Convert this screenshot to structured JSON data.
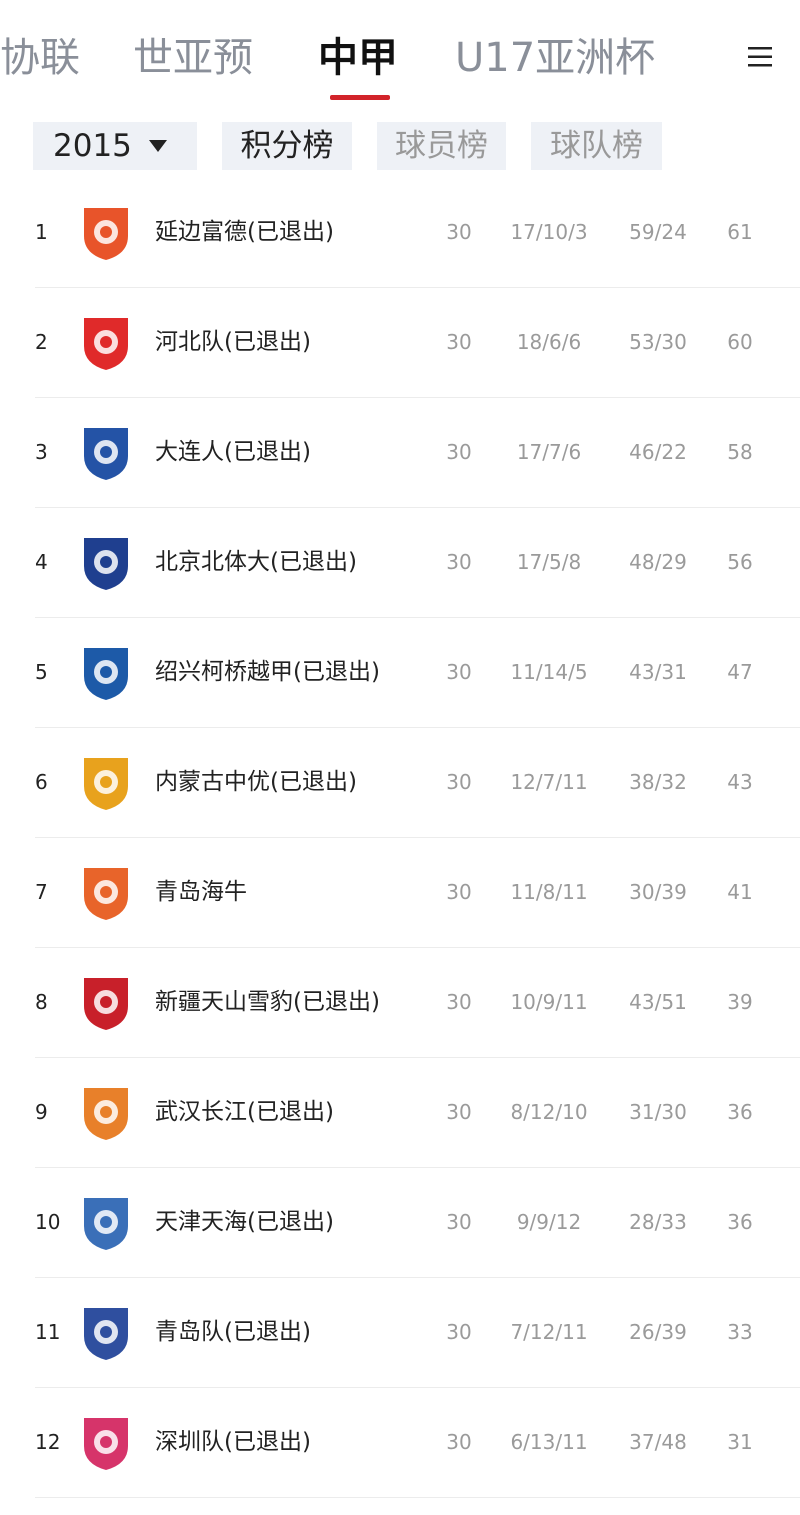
{
  "top_tabs": [
    "协联",
    "世亚预",
    "中甲",
    "U17亚洲杯"
  ],
  "filters": {
    "season": "2015",
    "tabs": [
      "积分榜",
      "球员榜",
      "球队榜"
    ]
  },
  "table": {
    "rows": [
      [
        1,
        "延边富德(已退出)",
        30,
        "17/10/3",
        "59/24",
        61
      ],
      [
        2,
        "河北队(已退出)",
        30,
        "18/6/6",
        "53/30",
        60
      ],
      [
        3,
        "大连人(已退出)",
        30,
        "17/7/6",
        "46/22",
        58
      ],
      [
        4,
        "北京北体大(已退出)",
        30,
        "17/5/8",
        "48/29",
        56
      ],
      [
        5,
        "绍兴柯桥越甲(已退出)",
        30,
        "11/14/5",
        "43/31",
        47
      ],
      [
        6,
        "内蒙古中优(已退出)",
        30,
        "12/7/11",
        "38/32",
        43
      ],
      [
        7,
        "青岛海牛",
        30,
        "11/8/11",
        "30/39",
        41
      ],
      [
        8,
        "新疆天山雪豹(已退出)",
        30,
        "10/9/11",
        "43/51",
        39
      ],
      [
        9,
        "武汉长江(已退出)",
        30,
        "8/12/10",
        "31/30",
        36
      ],
      [
        10,
        "天津天海(已退出)",
        30,
        "9/9/12",
        "28/33",
        36
      ],
      [
        11,
        "青岛队(已退出)",
        30,
        "7/12/11",
        "26/39",
        33
      ],
      [
        12,
        "深圳队(已退出)",
        30,
        "6/13/11",
        "37/48",
        31
      ]
    ]
  }
}
